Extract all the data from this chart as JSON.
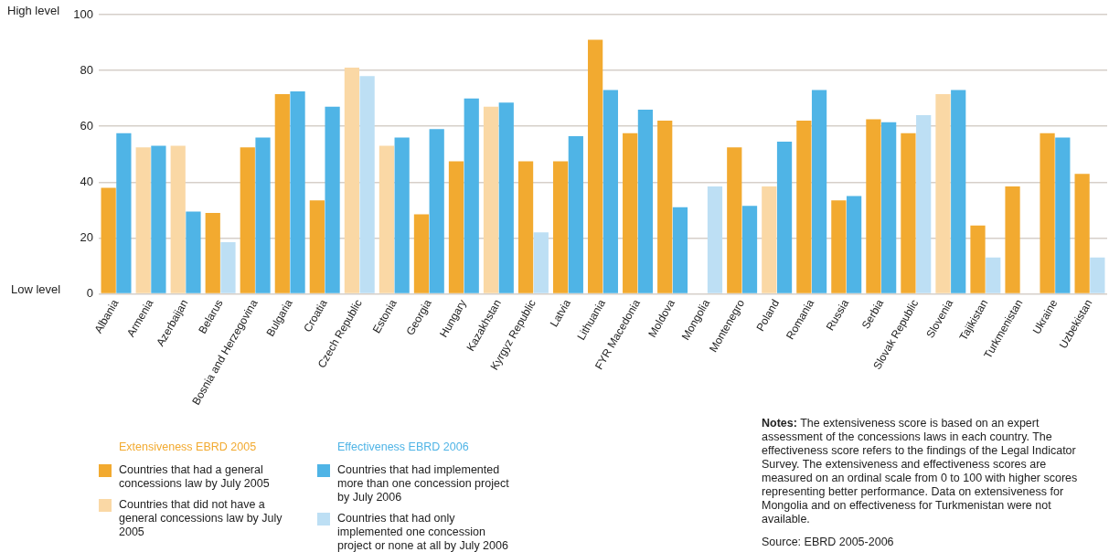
{
  "chart_data": {
    "type": "bar",
    "categories": [
      "Albania",
      "Armenia",
      "Azerbaijan",
      "Belarus",
      "Bosnia and Herzegovina",
      "Bulgaria",
      "Croatia",
      "Czech Republic",
      "Estonia",
      "Georgia",
      "Hungary",
      "Kazakhstan",
      "Kyrgyz Republic",
      "Latvia",
      "Lithuania",
      "FYR Macedonia",
      "Moldova",
      "Mongolia",
      "Montenegro",
      "Poland",
      "Romania",
      "Russia",
      "Serbia",
      "Slovak Republic",
      "Slovenia",
      "Tajikistan",
      "Turkmenistan",
      "Ukraine",
      "Uzbekistan"
    ],
    "series": [
      {
        "name": "Extensiveness EBRD 2005",
        "color": "#f2aa30",
        "values": [
          38,
          52.5,
          53,
          29,
          52.5,
          71.5,
          33.5,
          81,
          53,
          28.5,
          47.5,
          67,
          47.5,
          47.5,
          91,
          57.5,
          62,
          null,
          52.5,
          38.5,
          62,
          33.5,
          62.5,
          57.5,
          71.5,
          24.5,
          38.5,
          57.5,
          43
        ],
        "colors": [
          "#f2aa30",
          "#fad8a5",
          "#fad8a5",
          "#f2aa30",
          "#f2aa30",
          "#f2aa30",
          "#f2aa30",
          "#fad8a5",
          "#fad8a5",
          "#f2aa30",
          "#f2aa30",
          "#fad8a5",
          "#f2aa30",
          "#f2aa30",
          "#f2aa30",
          "#f2aa30",
          "#f2aa30",
          "#f2aa30",
          "#f2aa30",
          "#fad8a5",
          "#f2aa30",
          "#f2aa30",
          "#f2aa30",
          "#f2aa30",
          "#fad8a5",
          "#f2aa30",
          "#f2aa30",
          "#f2aa30",
          "#f2aa30"
        ]
      },
      {
        "name": "Effectiveness EBRD 2006",
        "color": "#4fb4e6",
        "values": [
          57.5,
          53,
          29.5,
          18.5,
          56,
          72.5,
          67,
          78,
          56,
          59,
          70,
          68.5,
          22,
          56.5,
          73,
          66,
          31,
          38.5,
          31.5,
          54.5,
          73,
          35,
          61.5,
          64,
          73,
          13,
          null,
          56,
          13
        ],
        "colors": [
          "#4fb4e6",
          "#4fb4e6",
          "#4fb4e6",
          "#bddff4",
          "#4fb4e6",
          "#4fb4e6",
          "#4fb4e6",
          "#bddff4",
          "#4fb4e6",
          "#4fb4e6",
          "#4fb4e6",
          "#4fb4e6",
          "#bddff4",
          "#4fb4e6",
          "#4fb4e6",
          "#4fb4e6",
          "#4fb4e6",
          "#bddff4",
          "#4fb4e6",
          "#4fb4e6",
          "#4fb4e6",
          "#4fb4e6",
          "#4fb4e6",
          "#bddff4",
          "#4fb4e6",
          "#bddff4",
          "#4fb4e6",
          "#4fb4e6",
          "#bddff4"
        ]
      }
    ],
    "ylim": [
      0,
      100
    ],
    "yticks": [
      0,
      20,
      40,
      60,
      80,
      100
    ],
    "grid": "y",
    "legend": "bottom",
    "annotations": [
      "High level",
      "Low level",
      "Countries that had a general concessions law by July 2005",
      "Countries that did not have a general concessions law by July 2005",
      "Countries that had implemented more than one concession project by July 2006",
      "Countries that had only implemented one concession project or none at all by July 2006",
      "Notes: The extensiveness score is based on an expert assessment of the concessions laws in each country. The effectiveness score refers to the findings of the Legal Indicator Survey. The extensiveness and effectiveness scores are measured on an ordinal scale from 0 to 100 with higher scores representing better performance. Data on extensiveness for Mongolia and on effectiveness for Turkmenistan were not available.",
      "Source: EBRD 2005-2006"
    ]
  }
}
